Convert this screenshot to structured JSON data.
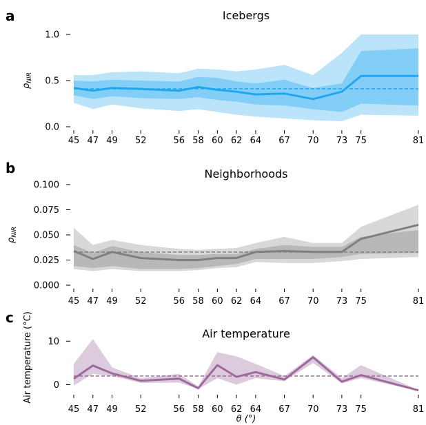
{
  "x_ticks": [
    45,
    47,
    49,
    52,
    56,
    58,
    60,
    62,
    64,
    67,
    70,
    73,
    75,
    81
  ],
  "xlabel": "θ (°)",
  "colors": {
    "a": "#1ea7ee",
    "b": "#7f7f7f",
    "c": "#9c6b9c"
  },
  "chart_data": [
    {
      "panel": "a",
      "type": "line",
      "title": "Icebergs",
      "ylabel": "ρ",
      "ylabel_sub": "NIR",
      "ylim": [
        0,
        1.0
      ],
      "yticks": [
        0.0,
        0.5,
        1.0
      ],
      "ytick_labels": [
        "0.0",
        "0.5",
        "1.0"
      ],
      "reference_line": 0.41,
      "x": [
        45,
        47,
        49,
        52,
        56,
        58,
        60,
        62,
        64,
        67,
        70,
        73,
        75,
        81
      ],
      "median": [
        0.42,
        0.39,
        0.42,
        0.41,
        0.39,
        0.43,
        0.4,
        0.38,
        0.35,
        0.36,
        0.3,
        0.38,
        0.55,
        0.55
      ],
      "band_inner": {
        "lower": [
          0.34,
          0.3,
          0.33,
          0.31,
          0.3,
          0.32,
          0.29,
          0.27,
          0.24,
          0.23,
          0.19,
          0.16,
          0.25,
          0.23
        ],
        "upper": [
          0.5,
          0.49,
          0.51,
          0.5,
          0.49,
          0.54,
          0.53,
          0.49,
          0.47,
          0.51,
          0.42,
          0.47,
          0.82,
          0.85
        ]
      },
      "band_outer": {
        "lower": [
          0.26,
          0.19,
          0.24,
          0.2,
          0.17,
          0.19,
          0.16,
          0.13,
          0.11,
          0.09,
          0.07,
          0.06,
          0.13,
          0.12
        ],
        "upper": [
          0.56,
          0.56,
          0.59,
          0.6,
          0.58,
          0.63,
          0.62,
          0.6,
          0.62,
          0.67,
          0.56,
          0.8,
          1.0,
          1.0
        ]
      }
    },
    {
      "panel": "b",
      "type": "line",
      "title": "Neighborhoods",
      "ylabel": "ρ",
      "ylabel_sub": "NIR",
      "ylim": [
        0,
        0.1
      ],
      "yticks": [
        0.0,
        0.025,
        0.05,
        0.075,
        0.1
      ],
      "ytick_labels": [
        "0.000",
        "0.025",
        "0.050",
        "0.075",
        "0.100"
      ],
      "reference_line": 0.033,
      "x": [
        45,
        47,
        49,
        52,
        56,
        58,
        60,
        62,
        64,
        67,
        70,
        73,
        75,
        81
      ],
      "median": [
        0.034,
        0.026,
        0.033,
        0.027,
        0.025,
        0.025,
        0.027,
        0.027,
        0.033,
        0.034,
        0.033,
        0.033,
        0.046,
        0.06
      ],
      "band_inner": {
        "lower": [
          0.019,
          0.017,
          0.019,
          0.016,
          0.016,
          0.017,
          0.019,
          0.021,
          0.026,
          0.026,
          0.026,
          0.028,
          0.031,
          0.032
        ],
        "upper": [
          0.04,
          0.032,
          0.039,
          0.033,
          0.03,
          0.03,
          0.031,
          0.031,
          0.036,
          0.04,
          0.038,
          0.038,
          0.048,
          0.055
        ]
      },
      "band_outer": {
        "lower": [
          0.016,
          0.014,
          0.016,
          0.014,
          0.014,
          0.015,
          0.017,
          0.018,
          0.023,
          0.022,
          0.022,
          0.024,
          0.026,
          0.028
        ],
        "upper": [
          0.057,
          0.04,
          0.045,
          0.04,
          0.036,
          0.035,
          0.036,
          0.037,
          0.042,
          0.048,
          0.042,
          0.042,
          0.058,
          0.08
        ]
      }
    },
    {
      "panel": "c",
      "type": "line",
      "title": "Air temperature",
      "ylabel": "Air temperature (°C)",
      "ylim": [
        -1.5,
        14
      ],
      "yticks": [
        0,
        10
      ],
      "ytick_labels": [
        "0",
        "10"
      ],
      "reference_line": 2.0,
      "x": [
        45,
        47,
        49,
        52,
        56,
        58,
        60,
        62,
        64,
        67,
        70,
        73,
        75,
        81
      ],
      "median": [
        1.4,
        4.4,
        2.6,
        0.9,
        1.4,
        -0.8,
        4.5,
        1.8,
        2.9,
        1.2,
        6.3,
        0.7,
        2.2,
        -1.3
      ],
      "band": {
        "lower": [
          -0.2,
          2.5,
          2.0,
          0.4,
          0.5,
          -1.0,
          1.5,
          0.0,
          1.5,
          0.8,
          5.0,
          0.3,
          1.5,
          -1.4
        ],
        "upper": [
          4.8,
          10.5,
          4.0,
          1.5,
          2.5,
          -0.4,
          7.5,
          6.5,
          4.8,
          2.0,
          6.8,
          1.5,
          4.5,
          -1.2
        ]
      }
    }
  ]
}
